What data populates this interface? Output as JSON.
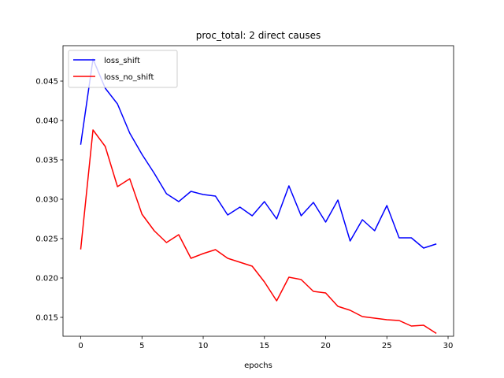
{
  "chart_data": {
    "type": "line",
    "title": "proc_total: 2 direct causes",
    "xlabel": "epochs",
    "ylabel": "",
    "xlim": [
      -1.45,
      30.45
    ],
    "ylim": [
      0.0126,
      0.0495
    ],
    "xticks": [
      0,
      5,
      10,
      15,
      20,
      25,
      30
    ],
    "yticks": [
      0.015,
      0.02,
      0.025,
      0.03,
      0.035,
      0.04,
      0.045
    ],
    "ytick_labels": [
      "0.015",
      "0.020",
      "0.025",
      "0.030",
      "0.035",
      "0.040",
      "0.045"
    ],
    "grid": false,
    "legend": "upper left",
    "x": [
      0,
      1,
      2,
      3,
      4,
      5,
      6,
      7,
      8,
      9,
      10,
      11,
      12,
      13,
      14,
      15,
      16,
      17,
      18,
      19,
      20,
      21,
      22,
      23,
      24,
      25,
      26,
      27,
      28,
      29
    ],
    "series": [
      {
        "name": "loss_shift",
        "color": "#0000ff",
        "values": [
          0.037,
          0.0478,
          0.0441,
          0.0421,
          0.0384,
          0.0357,
          0.0333,
          0.0307,
          0.0297,
          0.031,
          0.0306,
          0.0304,
          0.028,
          0.029,
          0.0279,
          0.0297,
          0.0275,
          0.0317,
          0.0279,
          0.0296,
          0.0271,
          0.0299,
          0.0247,
          0.0274,
          0.026,
          0.0292,
          0.0251,
          0.0251,
          0.0238,
          0.0243
        ]
      },
      {
        "name": "loss_no_shift",
        "color": "#ff0000",
        "values": [
          0.0237,
          0.0388,
          0.0367,
          0.0316,
          0.0326,
          0.0281,
          0.026,
          0.0245,
          0.0255,
          0.0225,
          0.0231,
          0.0236,
          0.0225,
          0.022,
          0.0215,
          0.0195,
          0.0171,
          0.0201,
          0.0198,
          0.0183,
          0.0181,
          0.0164,
          0.0159,
          0.0151,
          0.0149,
          0.0147,
          0.0146,
          0.0139,
          0.014,
          0.013
        ]
      }
    ]
  }
}
